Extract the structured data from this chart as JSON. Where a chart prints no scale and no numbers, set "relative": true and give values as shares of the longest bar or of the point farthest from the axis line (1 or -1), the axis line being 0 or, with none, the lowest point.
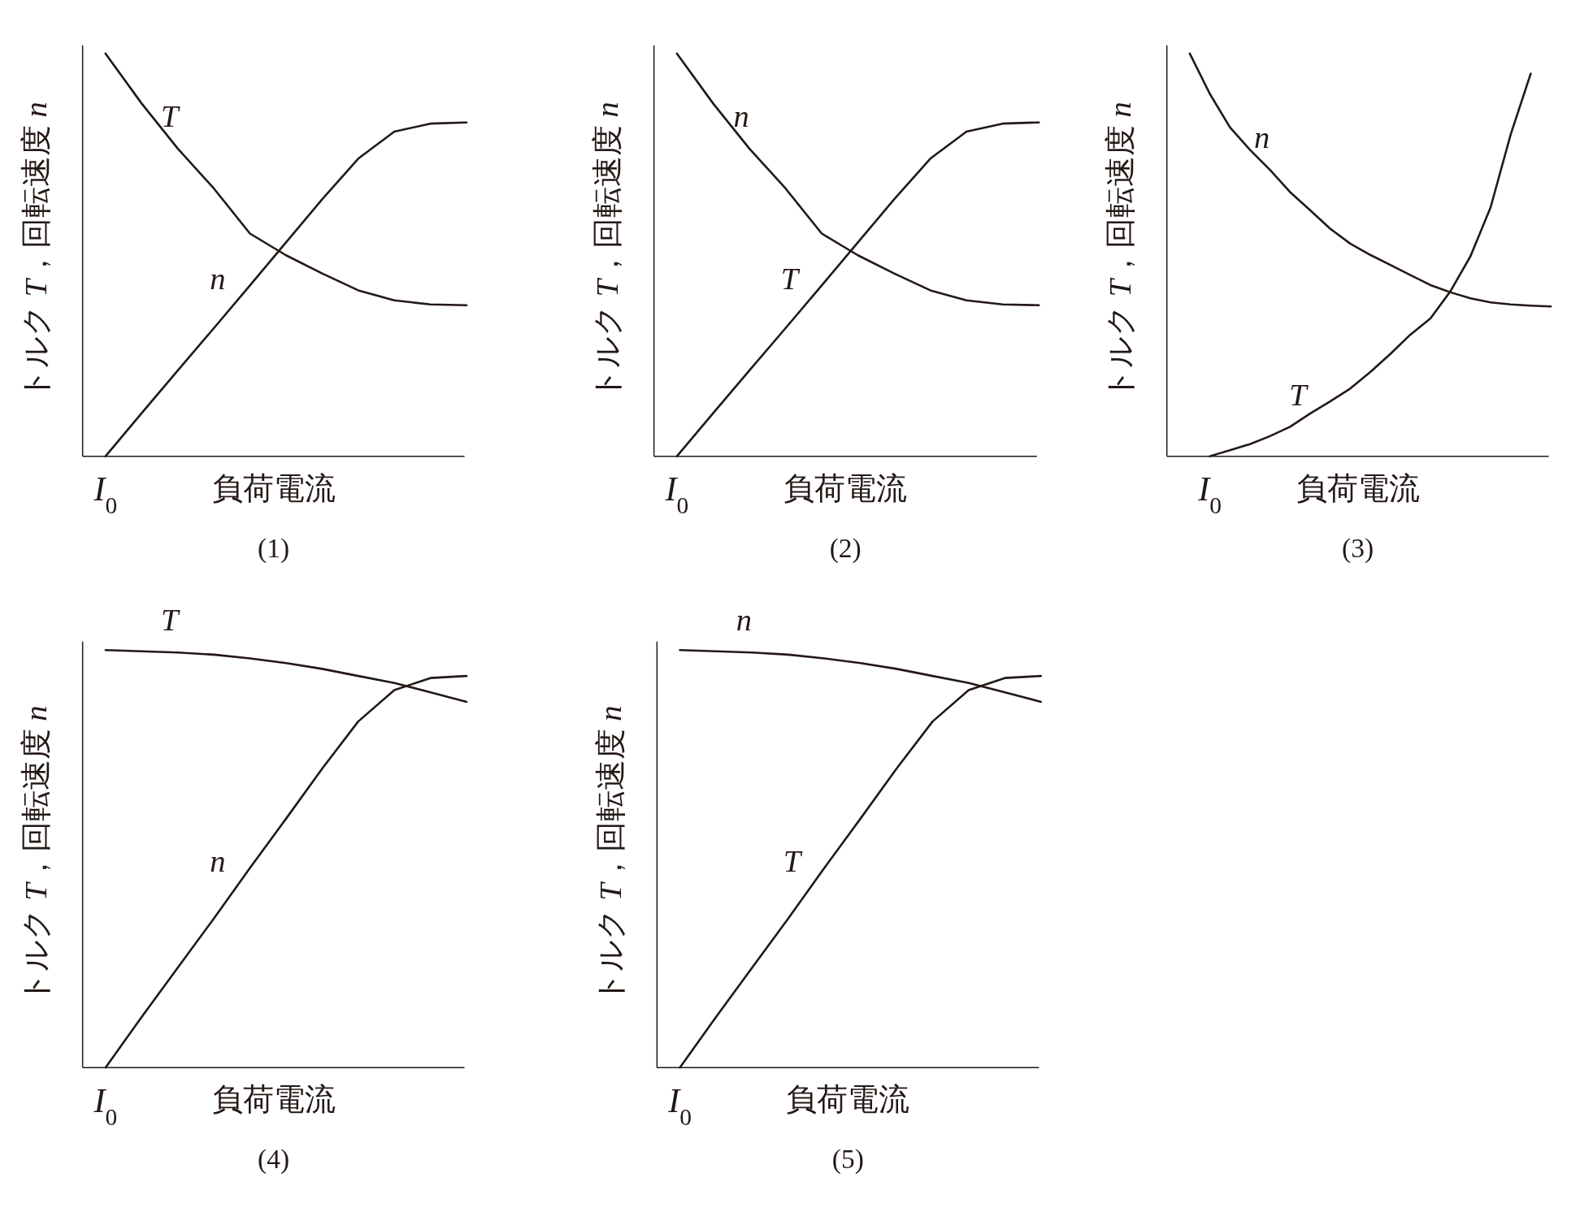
{
  "chart_data": [
    {
      "type": "line",
      "title": "(1)",
      "xlabel": "負荷電流",
      "ylabel": "トルク T，回転速度 n",
      "annotations": [
        "I$_{0}$"
      ],
      "relative": true,
      "categories": [
        null,
        null,
        null,
        null,
        null,
        null,
        null,
        null,
        null,
        null,
        null
      ],
      "series": [
        {
          "name": "T",
          "color": "#231815",
          "values": [
            1,
            0.876,
            0.764,
            0.665,
            0.553,
            0.499,
            0.454,
            0.412,
            0.387,
            0.377,
            0.375
          ]
        },
        {
          "name": "n",
          "color": "#231815",
          "values": [
            0,
            0.107,
            0.213,
            0.318,
            0.424,
            0.531,
            0.638,
            0.739,
            0.806,
            0.826,
            0.829
          ]
        }
      ]
    },
    {
      "type": "line",
      "title": "(2)",
      "xlabel": "負荷電流",
      "ylabel": "トルク T，回転速度 n",
      "annotations": [
        "I$_{0}$"
      ],
      "relative": true,
      "categories": [
        null,
        null,
        null,
        null,
        null,
        null,
        null,
        null,
        null,
        null,
        null
      ],
      "series": [
        {
          "name": "n",
          "color": "#231815",
          "values": [
            1,
            0.876,
            0.764,
            0.665,
            0.553,
            0.499,
            0.454,
            0.412,
            0.387,
            0.377,
            0.375
          ]
        },
        {
          "name": "T",
          "color": "#231815",
          "values": [
            0,
            0.107,
            0.213,
            0.318,
            0.424,
            0.531,
            0.638,
            0.739,
            0.806,
            0.826,
            0.829
          ]
        }
      ]
    },
    {
      "type": "line",
      "title": "(3)",
      "xlabel": "負荷電流",
      "ylabel": "トルク T，回転速度 n",
      "annotations": [
        "I$_{0}$"
      ],
      "relative": true,
      "categories": [
        null,
        null,
        null,
        null,
        null,
        null,
        null,
        null,
        null,
        null,
        null,
        null,
        null,
        null,
        null,
        null,
        null,
        null,
        null
      ],
      "series": [
        {
          "name": "n",
          "color": "#231815",
          "values": [
            1,
            0.9,
            0.817,
            0.761,
            0.711,
            0.656,
            0.611,
            0.565,
            0.528,
            0.5,
            0.475,
            0.45,
            0.425,
            0.407,
            0.392,
            0.382,
            0.377,
            0.374,
            0.372
          ]
        },
        {
          "name": "T",
          "color": "#231815",
          "values": [
            null,
            0,
            0.015,
            0.03,
            0.05,
            0.073,
            0.106,
            0.136,
            0.168,
            0.209,
            0.254,
            0.302,
            0.342,
            0.41,
            0.497,
            0.618,
            0.799,
            0.95,
            null
          ]
        }
      ]
    },
    {
      "type": "line",
      "title": "(4)",
      "xlabel": "負荷電流",
      "ylabel": "トルク T，回転速度 n",
      "annotations": [
        "I$_{0}$"
      ],
      "relative": true,
      "categories": [
        null,
        null,
        null,
        null,
        null,
        null,
        null,
        null,
        null,
        null,
        null
      ],
      "series": [
        {
          "name": "T",
          "color": "#231815",
          "values": [
            1,
            0.997,
            0.994,
            0.989,
            0.98,
            0.969,
            0.955,
            0.938,
            0.921,
            0.899,
            0.876
          ]
        },
        {
          "name": "n",
          "color": "#231815",
          "values": [
            0,
            0.121,
            0.239,
            0.357,
            0.478,
            0.596,
            0.716,
            0.829,
            0.904,
            0.933,
            0.938
          ]
        }
      ]
    },
    {
      "type": "line",
      "title": "(5)",
      "xlabel": "負荷電流",
      "ylabel": "トルク T，回転速度 n",
      "annotations": [
        "I$_{0}$"
      ],
      "relative": true,
      "categories": [
        null,
        null,
        null,
        null,
        null,
        null,
        null,
        null,
        null,
        null,
        null
      ],
      "series": [
        {
          "name": "n",
          "color": "#231815",
          "values": [
            1,
            0.997,
            0.994,
            0.989,
            0.98,
            0.969,
            0.955,
            0.938,
            0.921,
            0.899,
            0.876
          ]
        },
        {
          "name": "T",
          "color": "#231815",
          "values": [
            0,
            0.121,
            0.239,
            0.357,
            0.478,
            0.596,
            0.716,
            0.829,
            0.904,
            0.933,
            0.938
          ]
        }
      ]
    }
  ]
}
